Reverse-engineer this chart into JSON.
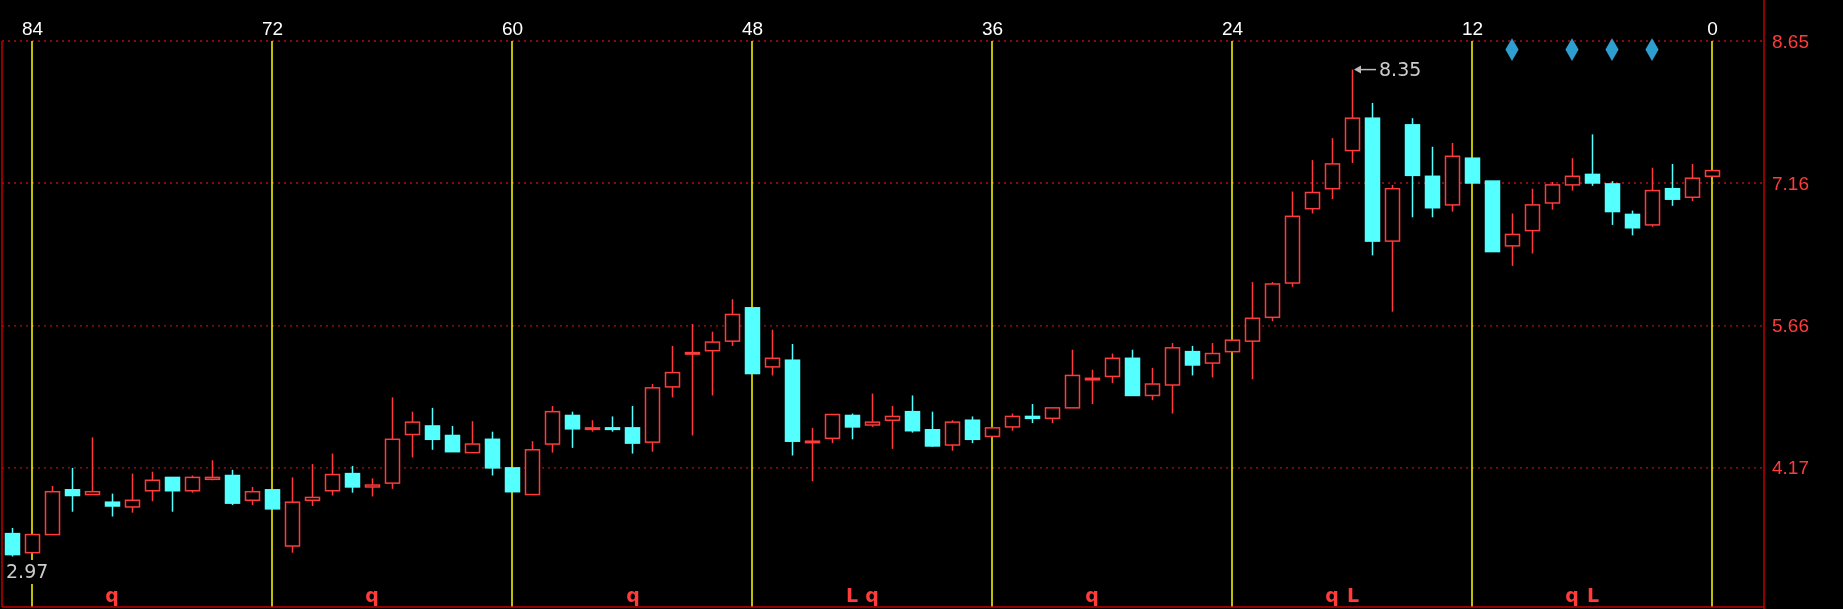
{
  "chart_data": {
    "type": "candlestick",
    "x": [
      85,
      84,
      83,
      82,
      81,
      80,
      79,
      78,
      77,
      76,
      75,
      74,
      73,
      72,
      71,
      70,
      69,
      68,
      67,
      66,
      65,
      64,
      63,
      62,
      61,
      60,
      59,
      58,
      57,
      56,
      55,
      54,
      53,
      52,
      51,
      50,
      49,
      48,
      47,
      46,
      45,
      44,
      43,
      42,
      41,
      40,
      39,
      38,
      37,
      36,
      35,
      34,
      33,
      32,
      31,
      30,
      29,
      28,
      27,
      26,
      25,
      24,
      23,
      22,
      21,
      20,
      19,
      18,
      17,
      16,
      15,
      14,
      13,
      12,
      11,
      10,
      9,
      8,
      7,
      6,
      5,
      4,
      3,
      2,
      1,
      0
    ],
    "ohlc": [
      [
        3.48,
        3.54,
        3.24,
        3.26
      ],
      [
        3.28,
        3.47,
        3.28,
        3.47
      ],
      [
        3.47,
        3.98,
        3.47,
        3.92
      ],
      [
        3.94,
        4.17,
        3.71,
        3.88
      ],
      [
        3.89,
        4.49,
        3.89,
        3.92
      ],
      [
        3.81,
        3.9,
        3.66,
        3.77
      ],
      [
        3.76,
        4.11,
        3.7,
        3.83
      ],
      [
        3.93,
        4.13,
        3.82,
        4.04
      ],
      [
        4.07,
        4.07,
        3.71,
        3.93
      ],
      [
        3.93,
        4.09,
        3.91,
        4.07
      ],
      [
        4.05,
        4.25,
        4.04,
        4.07
      ],
      [
        4.09,
        4.15,
        3.78,
        3.8
      ],
      [
        3.83,
        3.97,
        3.78,
        3.92
      ],
      [
        3.94,
        3.94,
        3.74,
        3.74
      ],
      [
        3.35,
        4.07,
        3.28,
        3.81
      ],
      [
        3.83,
        4.21,
        3.77,
        3.86
      ],
      [
        3.93,
        4.32,
        3.88,
        4.1
      ],
      [
        4.11,
        4.19,
        3.91,
        3.97
      ],
      [
        3.97,
        4.06,
        3.87,
        3.99
      ],
      [
        4.01,
        4.91,
        3.95,
        4.47
      ],
      [
        4.52,
        4.76,
        4.28,
        4.65
      ],
      [
        4.61,
        4.8,
        4.36,
        4.47
      ],
      [
        4.51,
        4.61,
        4.34,
        4.34
      ],
      [
        4.33,
        4.66,
        4.33,
        4.42
      ],
      [
        4.47,
        4.55,
        4.09,
        4.17
      ],
      [
        4.17,
        4.17,
        3.92,
        3.92
      ],
      [
        3.89,
        4.45,
        3.89,
        4.36
      ],
      [
        4.42,
        4.82,
        4.33,
        4.76
      ],
      [
        4.72,
        4.76,
        4.38,
        4.58
      ],
      [
        4.58,
        4.67,
        4.55,
        4.59
      ],
      [
        4.59,
        4.71,
        4.55,
        4.58
      ],
      [
        4.59,
        4.82,
        4.32,
        4.43
      ],
      [
        4.44,
        5.05,
        4.34,
        5.01
      ],
      [
        5.02,
        5.45,
        4.91,
        5.17
      ],
      [
        5.37,
        5.68,
        4.51,
        5.38
      ],
      [
        5.4,
        5.6,
        4.93,
        5.49
      ],
      [
        5.5,
        5.94,
        5.45,
        5.78
      ],
      [
        5.85,
        5.85,
        5.16,
        5.16
      ],
      [
        5.23,
        5.62,
        5.14,
        5.32
      ],
      [
        5.3,
        5.47,
        4.3,
        4.45
      ],
      [
        4.44,
        4.59,
        4.03,
        4.45
      ],
      [
        4.48,
        4.73,
        4.43,
        4.73
      ],
      [
        4.72,
        4.74,
        4.47,
        4.6
      ],
      [
        4.62,
        4.95,
        4.6,
        4.65
      ],
      [
        4.67,
        4.82,
        4.37,
        4.71
      ],
      [
        4.76,
        4.93,
        4.54,
        4.56
      ],
      [
        4.57,
        4.76,
        4.39,
        4.4
      ],
      [
        4.41,
        4.67,
        4.35,
        4.65
      ],
      [
        4.67,
        4.71,
        4.43,
        4.47
      ],
      [
        4.5,
        4.59,
        4.5,
        4.59
      ],
      [
        4.6,
        4.74,
        4.56,
        4.71
      ],
      [
        4.71,
        4.84,
        4.64,
        4.69
      ],
      [
        4.69,
        4.8,
        4.64,
        4.8
      ],
      [
        4.8,
        5.41,
        4.8,
        5.14
      ],
      [
        5.1,
        5.2,
        4.84,
        5.11
      ],
      [
        5.13,
        5.37,
        5.06,
        5.32
      ],
      [
        5.32,
        5.41,
        4.93,
        4.93
      ],
      [
        4.93,
        5.22,
        4.88,
        5.05
      ],
      [
        5.04,
        5.48,
        4.74,
        5.43
      ],
      [
        5.39,
        5.45,
        5.14,
        5.25
      ],
      [
        5.27,
        5.48,
        5.12,
        5.37
      ],
      [
        5.39,
        5.51,
        5.39,
        5.51
      ],
      [
        5.5,
        6.12,
        5.1,
        5.74
      ],
      [
        5.75,
        6.12,
        5.71,
        6.1
      ],
      [
        6.11,
        7.07,
        6.07,
        6.81
      ],
      [
        6.89,
        7.4,
        6.84,
        7.06
      ],
      [
        7.1,
        7.63,
        6.99,
        7.36
      ],
      [
        7.5,
        8.35,
        7.37,
        7.84
      ],
      [
        7.84,
        8.0,
        6.4,
        6.55
      ],
      [
        6.55,
        7.14,
        5.81,
        7.1
      ],
      [
        7.77,
        7.84,
        6.8,
        7.24
      ],
      [
        7.23,
        7.54,
        6.8,
        6.9
      ],
      [
        6.93,
        7.58,
        6.86,
        7.44
      ],
      [
        7.42,
        7.42,
        7.16,
        7.16
      ],
      [
        7.18,
        7.18,
        6.44,
        6.44
      ],
      [
        6.5,
        6.84,
        6.29,
        6.62
      ],
      [
        6.66,
        7.1,
        6.42,
        6.93
      ],
      [
        6.95,
        7.17,
        6.88,
        7.14
      ],
      [
        7.14,
        7.42,
        7.08,
        7.23
      ],
      [
        7.25,
        7.67,
        7.13,
        7.16
      ],
      [
        7.15,
        7.18,
        6.72,
        6.86
      ],
      [
        6.83,
        6.87,
        6.61,
        6.69
      ],
      [
        6.72,
        7.32,
        6.7,
        7.08
      ],
      [
        7.1,
        7.36,
        6.92,
        6.99
      ],
      [
        7.01,
        7.36,
        6.97,
        7.21
      ],
      [
        7.23,
        7.29,
        7.23,
        7.29
      ]
    ],
    "series": [
      {
        "type": "scatter",
        "x": [
          10,
          7,
          5,
          3
        ],
        "values": [
          8.56,
          8.56,
          8.56,
          8.56
        ],
        "color": "#2e9fd0"
      }
    ],
    "marker": "diamond",
    "xlim": [
      85.5,
      -2.6
    ],
    "xticks": [
      84,
      72,
      60,
      48,
      36,
      24,
      12,
      0
    ],
    "ylim": [
      2.71,
      8.65
    ],
    "yticks": [
      4.17,
      5.66,
      7.16,
      8.65
    ],
    "grid": true,
    "annotations": [
      {
        "text": "8.35",
        "x": 18,
        "y": 8.35
      },
      "2.97",
      "q",
      "q",
      "q",
      "L",
      "q",
      "q",
      "q",
      "L",
      "q",
      "L"
    ]
  }
}
